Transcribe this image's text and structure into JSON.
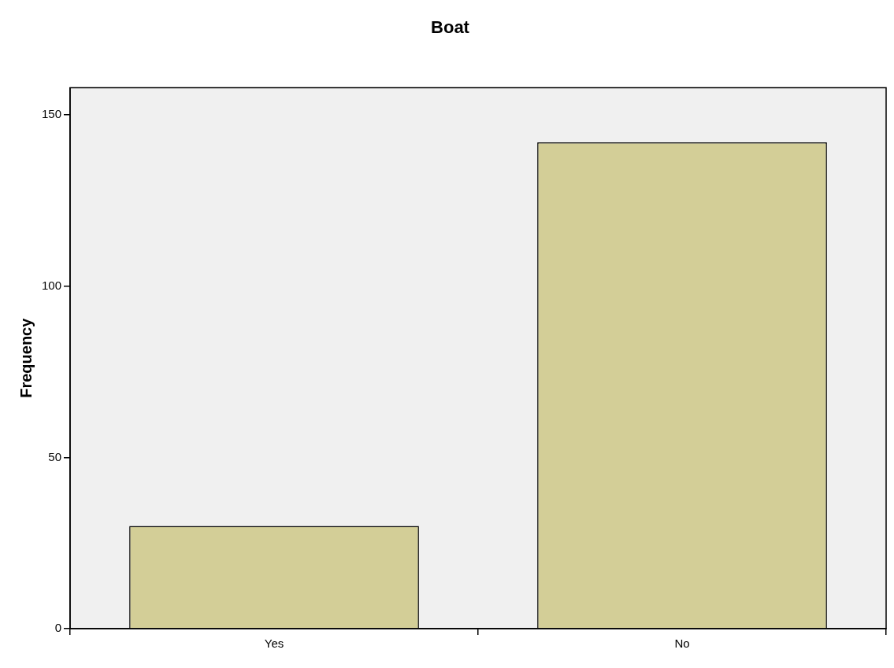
{
  "chart_data": {
    "type": "bar",
    "title": "Boat",
    "ylabel": "Frequency",
    "categories": [
      "Yes",
      "No"
    ],
    "values": [
      30,
      142
    ],
    "color": "#d3ce97",
    "ylim": [
      0,
      158
    ],
    "yticks": [
      0,
      50,
      100,
      150
    ],
    "grid": false,
    "legend": false
  }
}
